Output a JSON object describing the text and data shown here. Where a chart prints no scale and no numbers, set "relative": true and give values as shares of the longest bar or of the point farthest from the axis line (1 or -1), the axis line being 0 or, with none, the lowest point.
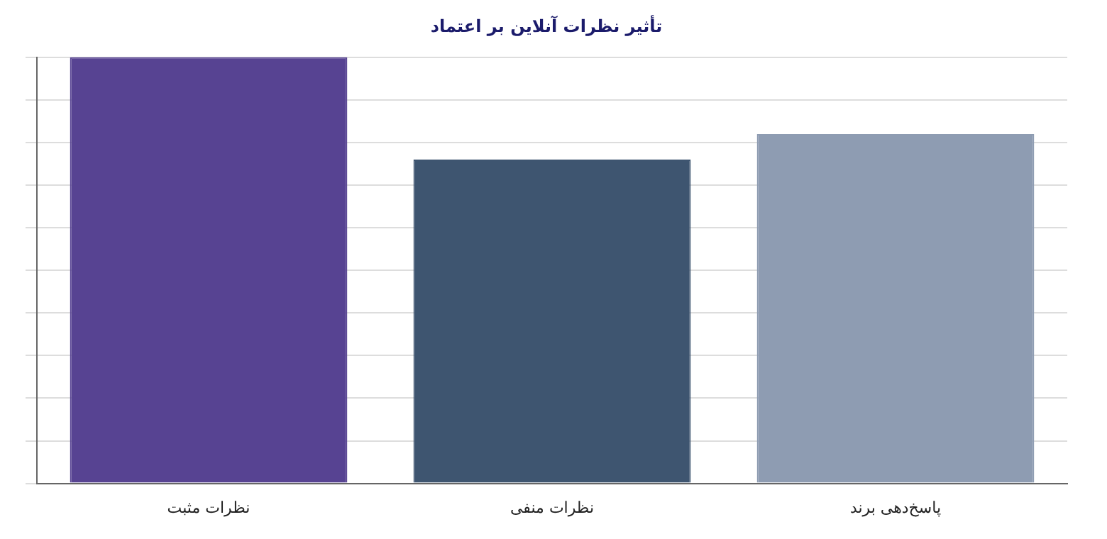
{
  "chart_data": {
    "type": "bar",
    "title": "تأثیر نظرات آنلاین بر اعتماد",
    "relative": true,
    "grid": "y",
    "legend": false,
    "categories": [
      "نظرات مثبت",
      "نظرات منفی",
      "پاسخ‌دهی برند"
    ],
    "values": [
      1,
      0.76,
      0.82
    ],
    "colors": [
      "#574392",
      "#3e5570",
      "#8e9cb2"
    ]
  }
}
